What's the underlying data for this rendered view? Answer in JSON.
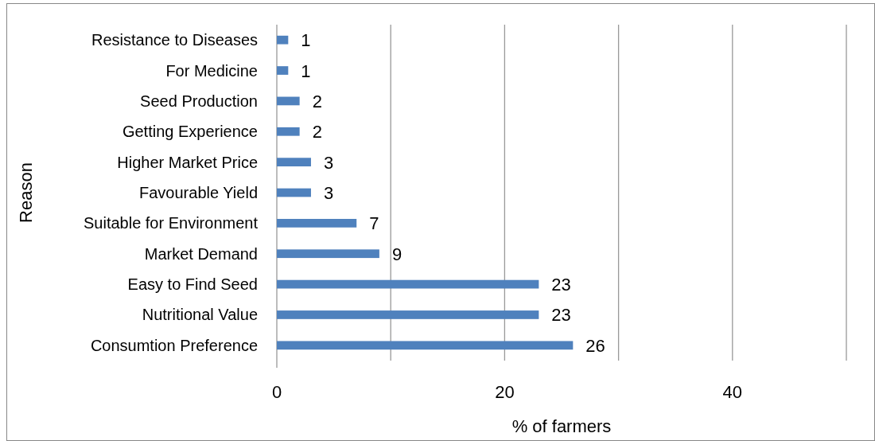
{
  "chart_data": {
    "type": "bar",
    "orientation": "horizontal",
    "xlabel": "% of farmers",
    "ylabel": "Reason",
    "categories": [
      "Resistance to Diseases",
      "For Medicine",
      "Seed Production",
      "Getting Experience",
      "Higher Market Price",
      "Favourable Yield",
      "Suitable for Environment",
      "Market Demand",
      "Easy to Find Seed",
      "Nutritional Value",
      "Consumtion Preference"
    ],
    "values": [
      1,
      1,
      2,
      2,
      3,
      3,
      7,
      9,
      23,
      23,
      26
    ],
    "color": "#4f81bd",
    "xlim": [
      0,
      50
    ],
    "xticks": [
      0,
      {
        "value": 10,
        "label": null
      },
      20,
      {
        "value": 30,
        "label": null
      },
      40,
      {
        "value": 50,
        "label": null
      }
    ],
    "grid": "x",
    "data_labels": true
  }
}
